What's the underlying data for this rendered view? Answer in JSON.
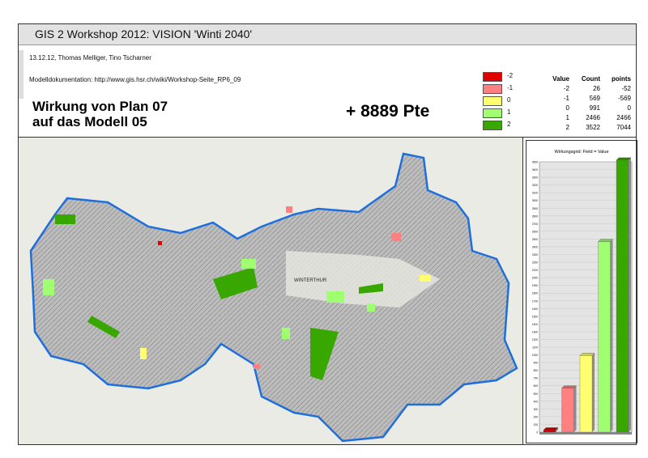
{
  "header": {
    "title": "GIS 2 Workshop 2012: VISION 'Winti 2040'",
    "authors": "13.12.12, Thomas Melliger, Tino Tscharner",
    "doc": "Modelldokumentation: http://www.gis.hsr.ch/wiki/Workshop-Seite_RP6_09",
    "heading_line1": "Wirkung von Plan 07",
    "heading_line2": "auf das Modell 05",
    "points_total": "+ 8889 Pte"
  },
  "legend": [
    {
      "label": "-2",
      "color": "#e00000"
    },
    {
      "label": "-1",
      "color": "#ff8080"
    },
    {
      "label": "0",
      "color": "#ffff70"
    },
    {
      "label": "1",
      "color": "#a0ff70"
    },
    {
      "label": "2",
      "color": "#38a800"
    }
  ],
  "table": {
    "headers": [
      "Value",
      "Count",
      "points"
    ],
    "rows": [
      [
        "-2",
        "26",
        "-52"
      ],
      [
        "-1",
        "569",
        "-569"
      ],
      [
        "0",
        "991",
        "0"
      ],
      [
        "1",
        "2466",
        "2466"
      ],
      [
        "2",
        "3522",
        "7044"
      ]
    ]
  },
  "map": {
    "outline_color": "#1e6fdc",
    "town_label": "WINTERTHUR"
  },
  "chart_data": {
    "type": "bar",
    "title": "Wirkungsgrid: Field = Value",
    "categories": [
      "-2",
      "-1",
      "0",
      "1",
      "2"
    ],
    "values": [
      26,
      569,
      991,
      2466,
      3522
    ],
    "colors": [
      "#d00000",
      "#ff8080",
      "#ffff70",
      "#a0ff70",
      "#38a800"
    ],
    "ylim": [
      0,
      3500
    ],
    "ytick_step": 100,
    "grid": true,
    "style": "3d"
  }
}
